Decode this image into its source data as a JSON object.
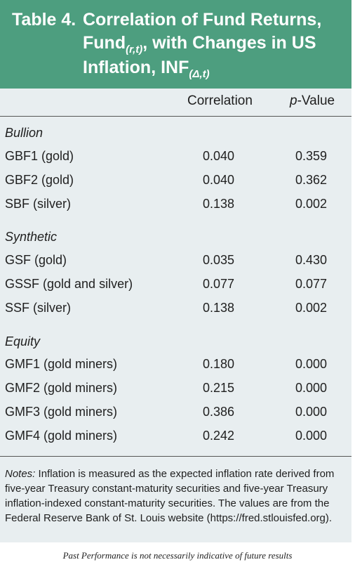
{
  "table": {
    "label": "Table 4.",
    "title_line1": "Correlation of Fund Returns,",
    "title_line2_main": "Fund",
    "title_line2_sub": "(r,t)",
    "title_line2_rest": ", with Changes in US",
    "title_line3_main": "Inflation, INF",
    "title_line3_sub": "(Δ,t)",
    "col_correlation": "Correlation",
    "col_pvalue_italic": "p",
    "col_pvalue_rest": "-Value"
  },
  "sections": [
    {
      "name": "Bullion",
      "rows": [
        {
          "label": "GBF1 (gold)",
          "correlation": "0.040",
          "pvalue": "0.359"
        },
        {
          "label": "GBF2 (gold)",
          "correlation": "0.040",
          "pvalue": "0.362"
        },
        {
          "label": "SBF (silver)",
          "correlation": "0.138",
          "pvalue": "0.002"
        }
      ]
    },
    {
      "name": "Synthetic",
      "rows": [
        {
          "label": "GSF (gold)",
          "correlation": "0.035",
          "pvalue": "0.430"
        },
        {
          "label": "GSSF (gold and silver)",
          "correlation": "0.077",
          "pvalue": "0.077"
        },
        {
          "label": "SSF (silver)",
          "correlation": "0.138",
          "pvalue": "0.002"
        }
      ]
    },
    {
      "name": "Equity",
      "rows": [
        {
          "label": "GMF1 (gold miners)",
          "correlation": "0.180",
          "pvalue": "0.000"
        },
        {
          "label": "GMF2 (gold miners)",
          "correlation": "0.215",
          "pvalue": "0.000"
        },
        {
          "label": "GMF3 (gold miners)",
          "correlation": "0.386",
          "pvalue": "0.000"
        },
        {
          "label": "GMF4 (gold miners)",
          "correlation": "0.242",
          "pvalue": "0.000"
        }
      ]
    }
  ],
  "notes": {
    "label": "Notes:",
    "text": " Inflation is measured as the expected inflation rate derived from five-year Treasury constant-maturity securities and five-year Treasury inflation-indexed constant-maturity securities. The values are from the Federal Reserve Bank of St. Louis website (https://fred.stlouisfed.org)."
  },
  "footer": "Past Performance is not necessarily indicative of future results"
}
